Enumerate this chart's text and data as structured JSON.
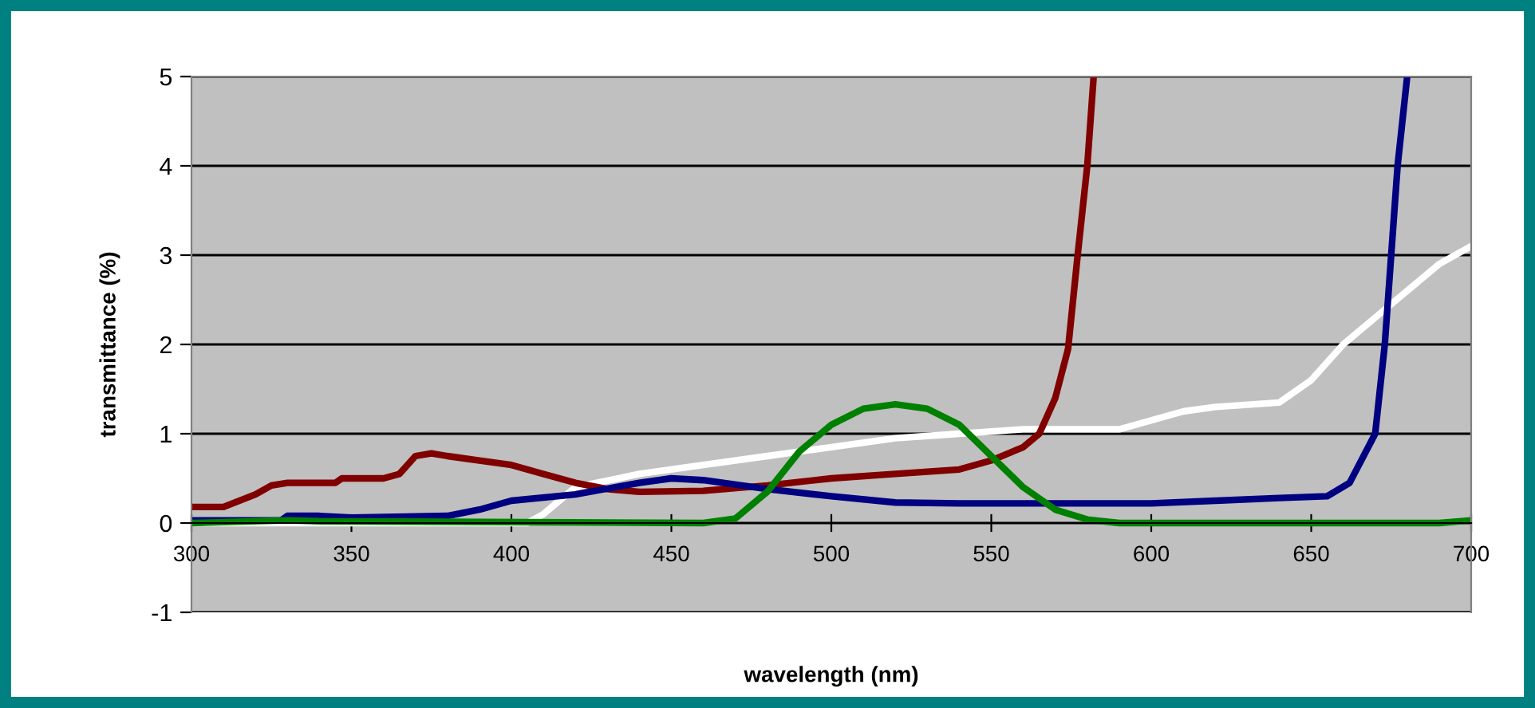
{
  "chart_data": {
    "type": "line",
    "xlabel": "wavelength (nm)",
    "ylabel": "transmittance (%)",
    "xlim": [
      300,
      700
    ],
    "xticks": [
      300,
      350,
      400,
      450,
      500,
      550,
      600,
      650,
      700
    ],
    "ylim": [
      -1,
      5
    ],
    "yticks": [
      -1,
      0,
      1,
      2,
      3,
      4,
      5
    ],
    "grid": "y",
    "legend": false,
    "marker": "none",
    "line_style": "solid",
    "series": [
      {
        "color": "#ffffff",
        "x": [
          300,
          400,
          405,
          410,
          420,
          440,
          460,
          480,
          500,
          520,
          540,
          560,
          580,
          590,
          600,
          610,
          620,
          640,
          650,
          660,
          670,
          680,
          690,
          700
        ],
        "values": [
          0,
          0,
          0,
          0.1,
          0.4,
          0.55,
          0.65,
          0.75,
          0.85,
          0.95,
          1.0,
          1.05,
          1.05,
          1.05,
          1.15,
          1.25,
          1.3,
          1.35,
          1.6,
          2.0,
          2.3,
          2.6,
          2.9,
          3.1
        ]
      },
      {
        "color": "#800000",
        "x": [
          300,
          310,
          320,
          325,
          330,
          345,
          347,
          360,
          365,
          370,
          375,
          380,
          390,
          400,
          410,
          420,
          430,
          440,
          460,
          480,
          500,
          520,
          540,
          550,
          560,
          565,
          570,
          574,
          577,
          580,
          582
        ],
        "values": [
          0.18,
          0.18,
          0.32,
          0.42,
          0.45,
          0.45,
          0.5,
          0.5,
          0.55,
          0.75,
          0.78,
          0.75,
          0.7,
          0.65,
          0.55,
          0.45,
          0.38,
          0.35,
          0.36,
          0.42,
          0.5,
          0.55,
          0.6,
          0.7,
          0.85,
          1.0,
          1.4,
          1.95,
          3.0,
          4.0,
          5.0
        ]
      },
      {
        "color": "#000080",
        "x": [
          300,
          328,
          330,
          340,
          350,
          380,
          390,
          400,
          420,
          440,
          450,
          460,
          480,
          500,
          520,
          540,
          600,
          620,
          640,
          655,
          662,
          670,
          673,
          675,
          677,
          680
        ],
        "values": [
          0.03,
          0.03,
          0.08,
          0.08,
          0.06,
          0.08,
          0.15,
          0.25,
          0.32,
          0.45,
          0.5,
          0.48,
          0.38,
          0.3,
          0.23,
          0.22,
          0.22,
          0.25,
          0.28,
          0.3,
          0.45,
          1.0,
          2.0,
          3.0,
          4.0,
          5.0
        ]
      },
      {
        "color": "#008000",
        "x": [
          300,
          330,
          340,
          460,
          470,
          480,
          490,
          500,
          510,
          520,
          530,
          540,
          550,
          560,
          570,
          580,
          590,
          690,
          700
        ],
        "values": [
          0,
          0.03,
          0.02,
          0,
          0.05,
          0.35,
          0.8,
          1.1,
          1.28,
          1.33,
          1.28,
          1.1,
          0.75,
          0.4,
          0.15,
          0.04,
          0,
          0,
          0.03
        ]
      }
    ]
  }
}
